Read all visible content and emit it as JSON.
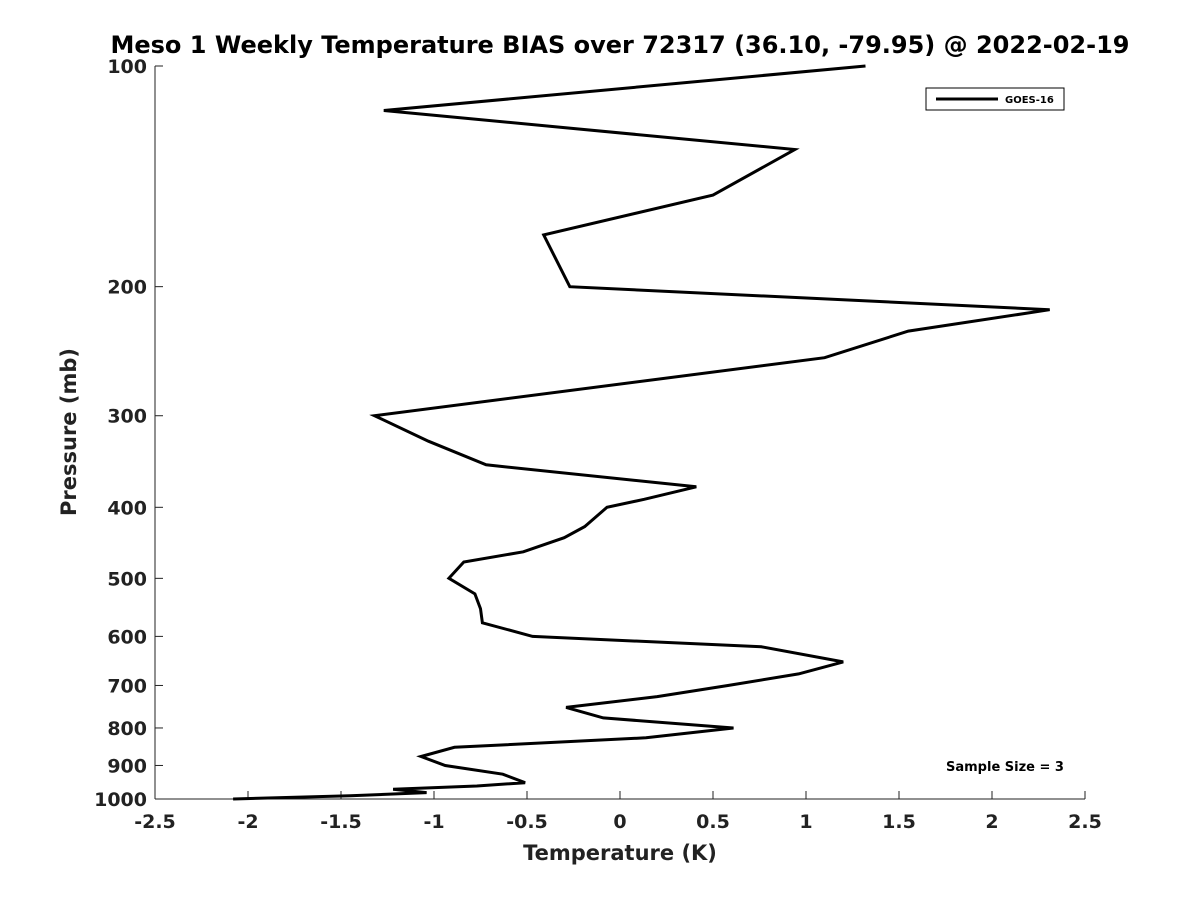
{
  "chart_data": {
    "type": "line",
    "title": "Meso 1 Weekly Temperature BIAS over 72317 (36.10, -79.95) @ 2022-02-19",
    "xlabel": "Temperature (K)",
    "ylabel": "Pressure (mb)",
    "xlim": [
      -2.5,
      2.5
    ],
    "ylim": [
      1000,
      100
    ],
    "yscale": "log",
    "x_ticks": [
      "-2.5",
      "-2",
      "-1.5",
      "-1",
      "-0.5",
      "0",
      "0.5",
      "1",
      "1.5",
      "2",
      "2.5"
    ],
    "y_ticks": [
      "100",
      "200",
      "300",
      "400",
      "500",
      "600",
      "700",
      "800",
      "900",
      "1000"
    ],
    "grid": false,
    "legend_position": "top-right",
    "annotation": "Sample Size = 3",
    "series": [
      {
        "name": "GOES-16",
        "color": "#000000",
        "points": [
          [
            1.32,
            100
          ],
          [
            -1.27,
            115
          ],
          [
            0.94,
            130
          ],
          [
            0.5,
            150
          ],
          [
            -0.41,
            170
          ],
          [
            -0.27,
            200
          ],
          [
            2.31,
            215
          ],
          [
            1.55,
            230
          ],
          [
            1.1,
            250
          ],
          [
            -1.32,
            300
          ],
          [
            -1.03,
            325
          ],
          [
            -0.72,
            350
          ],
          [
            0.41,
            375
          ],
          [
            0.13,
            390
          ],
          [
            -0.07,
            400
          ],
          [
            -0.19,
            425
          ],
          [
            -0.3,
            440
          ],
          [
            -0.52,
            460
          ],
          [
            -0.84,
            475
          ],
          [
            -0.92,
            500
          ],
          [
            -0.78,
            525
          ],
          [
            -0.75,
            550
          ],
          [
            -0.74,
            575
          ],
          [
            -0.47,
            600
          ],
          [
            0.76,
            620
          ],
          [
            1.2,
            650
          ],
          [
            0.96,
            675
          ],
          [
            0.58,
            700
          ],
          [
            0.2,
            725
          ],
          [
            -0.29,
            750
          ],
          [
            -0.09,
            775
          ],
          [
            0.61,
            800
          ],
          [
            0.14,
            825
          ],
          [
            -0.89,
            850
          ],
          [
            -1.07,
            875
          ],
          [
            -0.94,
            900
          ],
          [
            -0.63,
            925
          ],
          [
            -0.51,
            950
          ],
          [
            -0.77,
            960
          ],
          [
            -1.22,
            970
          ],
          [
            -1.04,
            980
          ],
          [
            -1.45,
            990
          ],
          [
            -2.08,
            1000
          ]
        ]
      }
    ]
  }
}
